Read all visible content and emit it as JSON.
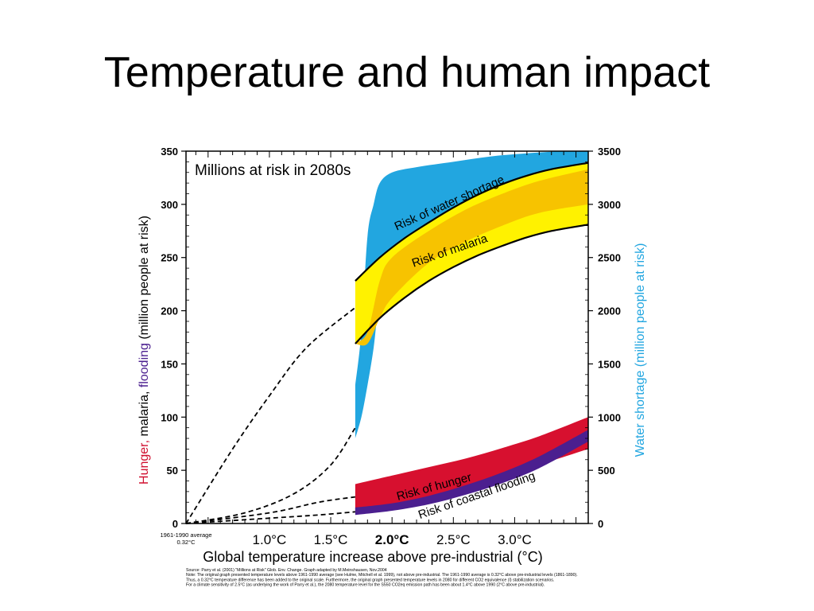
{
  "slide": {
    "title": "Temperature and human impact"
  },
  "chart_data": {
    "type": "area",
    "title": "Millions at risk in 2080s",
    "xlabel": "Global temperature increase above pre-industrial (°C)",
    "ylabel_left_parts": [
      {
        "text": "Hunger,",
        "color": "#d01030"
      },
      {
        "text": " malaria, ",
        "color": "#000000"
      },
      {
        "text": "flooding",
        "color": "#4b1f8f"
      },
      {
        "text": " (million people at risk)",
        "color": "#000000"
      }
    ],
    "ylabel_right_parts": [
      {
        "text": "Water shortage (million people at risk)",
        "color": "#22a6e0"
      }
    ],
    "ylim_left": [
      0,
      350
    ],
    "ylim_right": [
      0,
      3500
    ],
    "xlim": [
      0.32,
      3.6
    ],
    "y_ticks_left": [
      "0",
      "50",
      "100",
      "150",
      "200",
      "250",
      "300",
      "350"
    ],
    "y_ticks_right": [
      "0",
      "500",
      "1000",
      "1500",
      "2000",
      "2500",
      "3000",
      "3500"
    ],
    "x_ticks": [
      {
        "value": 1.0,
        "label": "1.0°C",
        "highlight": false
      },
      {
        "value": 1.5,
        "label": "1.5°C",
        "highlight": false
      },
      {
        "value": 2.0,
        "label": "2.0°C",
        "highlight": true
      },
      {
        "value": 2.5,
        "label": "2.5°C",
        "highlight": false
      },
      {
        "value": 3.0,
        "label": "3.0°C",
        "highlight": false
      }
    ],
    "baseline_note": [
      "1961-1990 average",
      "0.32°C"
    ],
    "colors": {
      "water": "#22a6e0",
      "malaria_outer": "#fff200",
      "malaria_inner": "#f7c300",
      "hunger": "#d7102f",
      "flooding": "#4b1f8f",
      "highlight": "#e0101e"
    },
    "bands": [
      {
        "name": "Risk of water shortage",
        "axis": "right",
        "x": [
          1.7,
          1.75,
          1.8,
          1.85,
          1.9,
          2.0,
          2.2,
          2.5,
          2.8,
          3.1,
          3.4,
          3.6
        ],
        "upper": [
          1300,
          1800,
          2700,
          3000,
          3200,
          3300,
          3350,
          3400,
          3450,
          3480,
          3500,
          3500
        ],
        "lower": [
          800,
          1000,
          1300,
          1650,
          2100,
          2350,
          2650,
          2900,
          3100,
          3250,
          3350,
          3400
        ]
      },
      {
        "name": "Risk of malaria",
        "axis": "left",
        "x": [
          1.7,
          1.9,
          2.1,
          2.3,
          2.5,
          2.7,
          2.9,
          3.1,
          3.3,
          3.6
        ],
        "upper": [
          228,
          250,
          268,
          283,
          297,
          309,
          319,
          327,
          333,
          339
        ],
        "lower": [
          169,
          193,
          212,
          228,
          241,
          252,
          261,
          269,
          275,
          281
        ]
      },
      {
        "name": "malaria_inner",
        "axis": "left",
        "x": [
          1.7,
          1.8,
          1.9,
          2.0,
          2.3,
          2.6,
          2.9,
          3.2,
          3.6
        ],
        "upper": [
          170,
          180,
          228,
          250,
          275,
          295,
          310,
          322,
          333
        ],
        "lower": [
          169,
          169,
          193,
          212,
          245,
          265,
          280,
          292,
          300
        ]
      },
      {
        "name": "Risk of hunger",
        "axis": "left",
        "x": [
          1.7,
          2.0,
          2.3,
          2.6,
          2.9,
          3.2,
          3.6
        ],
        "upper": [
          37,
          45,
          53,
          61,
          71,
          82,
          100
        ],
        "lower": [
          12,
          17,
          24,
          33,
          43,
          55,
          70
        ]
      },
      {
        "name": "Risk of coastal flooding",
        "axis": "left",
        "x": [
          1.7,
          2.0,
          2.3,
          2.6,
          2.9,
          3.2,
          3.6
        ],
        "upper": [
          15,
          19,
          26,
          36,
          48,
          63,
          88
        ],
        "lower": [
          8,
          12,
          18,
          27,
          38,
          52,
          77
        ]
      }
    ],
    "dashed_lines": [
      {
        "series": "malaria",
        "axis": "left",
        "x": [
          0.32,
          0.7,
          1.0,
          1.3,
          1.7
        ],
        "y": [
          0,
          70,
          120,
          165,
          203
        ]
      },
      {
        "series": "water",
        "axis": "right",
        "x": [
          0.32,
          0.8,
          1.2,
          1.5,
          1.7
        ],
        "y": [
          0,
          100,
          280,
          550,
          900
        ]
      },
      {
        "series": "hunger",
        "axis": "left",
        "x": [
          0.32,
          1.0,
          1.4,
          1.7
        ],
        "y": [
          0,
          10,
          20,
          25
        ]
      },
      {
        "series": "flooding",
        "axis": "left",
        "x": [
          0.32,
          1.0,
          1.4,
          1.7
        ],
        "y": [
          0,
          5,
          8,
          11
        ]
      }
    ],
    "band_labels": [
      {
        "text": "Risk of water shortage",
        "x": 2.48,
        "y": 298,
        "angle": -24
      },
      {
        "text": "Risk of malaria",
        "x": 2.48,
        "y": 253,
        "angle": -19
      },
      {
        "text": "Risk of hunger",
        "x": 2.35,
        "y": 31,
        "angle": -15
      },
      {
        "text": "Risk of coastal flooding",
        "x": 2.7,
        "y": 23,
        "angle": -19
      }
    ],
    "source_lines": [
      "Source: Parry et al. (2001) \"Millions at Risk\" Glob. Env. Change. Graph adapted by M.Meinshausen, Nov.2004",
      "Note: The original graph presented temperature levels above 1961-1990 average (see Hulme, Mitchell et al. 1999), not above pre-industrial. The 1961-1990 average is 0.32°C above pre-industrial levels (1861-1890).",
      "Thus, a 0.32°C temperature difference has been added to the original scale. Furthermore, the original graph presented temperature levels in 2080 for different CO2 equivalence (I) stabilization scenarios.",
      "For a climate sensitivity of 2.5°C (as underlying the work of Parry et al.), the 2080 temperature level for the S550 CO2eq emission path has been about 1.4°C above 1990 (2°C above pre-industrial)."
    ]
  }
}
